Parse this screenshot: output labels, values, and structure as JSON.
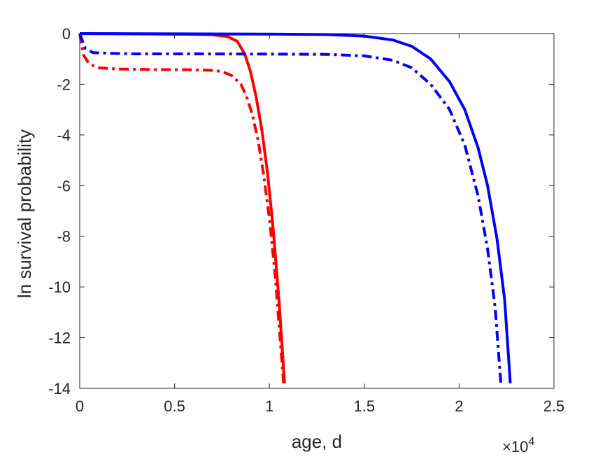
{
  "chart_data": {
    "type": "line",
    "xlabel": "age, d",
    "ylabel": "ln survival probability",
    "x_multiplier": {
      "base": "×10",
      "exponent": "4"
    },
    "xlim": [
      0,
      25000
    ],
    "ylim": [
      -14,
      0
    ],
    "xticks": [
      0,
      5000,
      10000,
      15000,
      20000,
      25000
    ],
    "xtick_labels": [
      "0",
      "0.5",
      "1",
      "1.5",
      "2",
      "2.5"
    ],
    "yticks": [
      0,
      -2,
      -4,
      -6,
      -8,
      -10,
      -12,
      -14
    ],
    "ytick_labels": [
      "0",
      "-2",
      "-4",
      "-6",
      "-8",
      "-10",
      "-12",
      "-14"
    ],
    "grid": false,
    "series": [
      {
        "color": "#ff0000",
        "style": "solid",
        "x": [
          0,
          2000,
          4000,
          6000,
          7000,
          7800,
          8300,
          8700,
          9000,
          9300,
          9600,
          9900,
          10200,
          10500,
          10800
        ],
        "y": [
          0,
          -0.01,
          -0.02,
          -0.03,
          -0.05,
          -0.12,
          -0.3,
          -0.8,
          -1.5,
          -2.5,
          -3.8,
          -5.5,
          -7.7,
          -10.5,
          -13.8
        ]
      },
      {
        "color": "#ff0000",
        "style": "dashdot",
        "x": [
          0,
          200,
          500,
          1000,
          2000,
          4000,
          6000,
          7000,
          7500,
          8000,
          8500,
          8800,
          9100,
          9400,
          9700,
          10000,
          10300,
          10600,
          10750
        ],
        "y": [
          0,
          -0.85,
          -1.2,
          -1.35,
          -1.4,
          -1.42,
          -1.43,
          -1.45,
          -1.5,
          -1.65,
          -2.0,
          -2.5,
          -3.2,
          -4.2,
          -5.6,
          -7.3,
          -9.5,
          -12.4,
          -13.8
        ]
      },
      {
        "color": "#0000ff",
        "style": "solid",
        "x": [
          0,
          5000,
          10000,
          13000,
          15000,
          16500,
          17500,
          18500,
          19500,
          20300,
          21000,
          21500,
          22000,
          22400,
          22700
        ],
        "y": [
          0,
          -0.01,
          -0.02,
          -0.04,
          -0.1,
          -0.25,
          -0.5,
          -1.0,
          -1.9,
          -3.0,
          -4.5,
          -6.0,
          -8.1,
          -10.5,
          -13.8
        ]
      },
      {
        "color": "#0000ff",
        "style": "dashdot",
        "x": [
          0,
          300,
          700,
          1500,
          3000,
          6000,
          10000,
          13000,
          15000,
          16500,
          17500,
          18500,
          19500,
          20300,
          21000,
          21500,
          21900,
          22200
        ],
        "y": [
          0,
          -0.6,
          -0.75,
          -0.78,
          -0.8,
          -0.8,
          -0.81,
          -0.82,
          -0.88,
          -1.05,
          -1.35,
          -2.0,
          -3.0,
          -4.4,
          -6.4,
          -8.5,
          -10.8,
          -13.8
        ]
      }
    ]
  }
}
